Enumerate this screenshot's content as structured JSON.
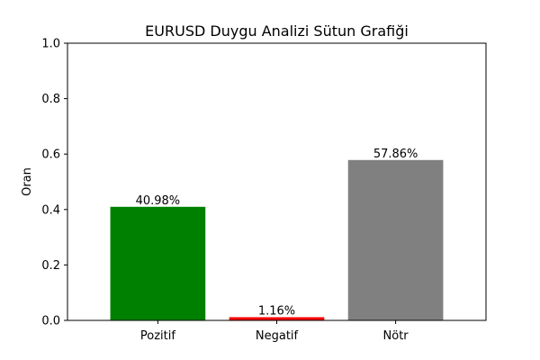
{
  "chart_data": {
    "type": "bar",
    "title": "EURUSD Duygu Analizi Sütun Grafiği",
    "xlabel": "",
    "ylabel": "Oran",
    "categories": [
      "Pozitif",
      "Negatif",
      "Nötr"
    ],
    "values": [
      0.4098,
      0.0116,
      0.5786
    ],
    "data_labels": [
      "40.98%",
      "1.16%",
      "57.86%"
    ],
    "colors": [
      "#008000",
      "#ff0000",
      "#808080"
    ],
    "ylim": [
      0,
      1.0
    ],
    "yticks": [
      0.0,
      0.2,
      0.4,
      0.6,
      0.8,
      1.0
    ],
    "ytick_labels": [
      "0.0",
      "0.2",
      "0.4",
      "0.6",
      "0.8",
      "1.0"
    ],
    "grid": false,
    "legend": "none"
  }
}
